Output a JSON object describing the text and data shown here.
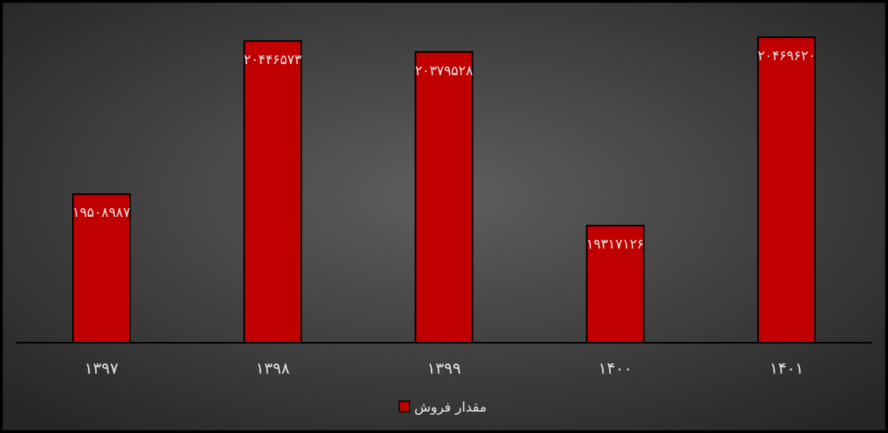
{
  "chart_data": {
    "type": "bar",
    "categories": [
      "۱۳۹۷",
      "۱۳۹۸",
      "۱۳۹۹",
      "۱۴۰۰",
      "۱۴۰۱"
    ],
    "series": [
      {
        "name": "مقدار فروش",
        "color": "#c00000",
        "values": [
          19508987,
          20446573,
          20379528,
          19317126,
          20469620
        ],
        "value_labels": [
          "۱۹۵۰۸۹۸۷",
          "۲۰۴۴۶۵۷۳",
          "۲۰۳۷۹۵۲۸",
          "۱۹۳۱۷۱۲۶",
          "۲۰۴۶۹۶۲۰"
        ]
      }
    ],
    "ylim": [
      18600000,
      20469620
    ],
    "tick_labels": "x",
    "legend": "bottom"
  }
}
